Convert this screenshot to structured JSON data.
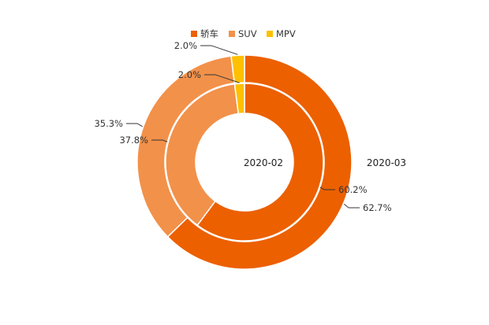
{
  "chart_data": {
    "type": "pie",
    "variant": "nested-donut",
    "categories": [
      "轿车",
      "SUV",
      "MPV"
    ],
    "colors": [
      "#EC6000",
      "#F2914A",
      "#FFC000"
    ],
    "legend_position": "top",
    "series": [
      {
        "name": "2020-02",
        "ring": "inner",
        "values": [
          60.2,
          37.8,
          2.0
        ],
        "labels": [
          "60.2%",
          "37.8%",
          "2.0%"
        ]
      },
      {
        "name": "2020-03",
        "ring": "outer",
        "values": [
          62.7,
          35.3,
          2.0
        ],
        "labels": [
          "62.7%",
          "35.3%",
          "2.0%"
        ]
      }
    ]
  }
}
